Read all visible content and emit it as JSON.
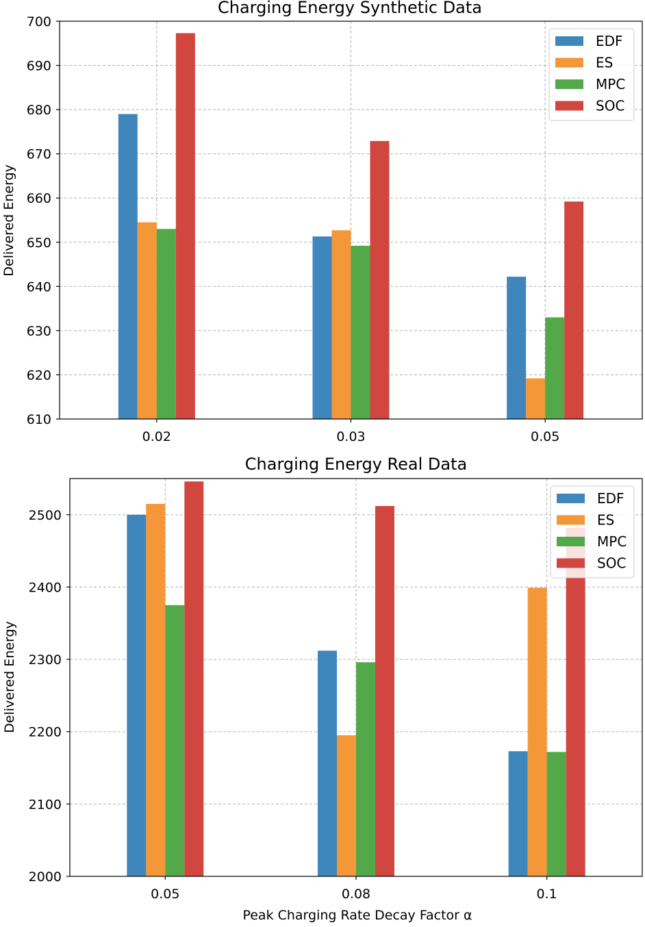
{
  "chart_data": [
    {
      "type": "bar",
      "title": "Charging Energy Synthetic Data",
      "xlabel": "",
      "ylabel": "Delivered Energy",
      "categories": [
        "0.02",
        "0.03",
        "0.05"
      ],
      "ylim": [
        610,
        700
      ],
      "yticks": [
        610,
        620,
        630,
        640,
        650,
        660,
        670,
        680,
        690,
        700
      ],
      "ytick_labels": [
        "610",
        "620",
        "630",
        "640",
        "650",
        "660",
        "670",
        "680",
        "690",
        "700"
      ],
      "grid": true,
      "legend_position": "top-right",
      "series": [
        {
          "name": "EDF",
          "color": "#3f86bc",
          "values": [
            679.0,
            651.3,
            642.2
          ]
        },
        {
          "name": "ES",
          "color": "#f39738",
          "values": [
            654.5,
            652.7,
            619.2
          ]
        },
        {
          "name": "MPC",
          "color": "#53a94a",
          "values": [
            653.0,
            649.2,
            633.0
          ]
        },
        {
          "name": "SOC",
          "color": "#d1463e",
          "values": [
            697.3,
            672.9,
            659.2
          ]
        }
      ]
    },
    {
      "type": "bar",
      "title": "Charging Energy Real Data",
      "xlabel": "Peak Charging Rate Decay Factor α",
      "ylabel": "Delivered Energy",
      "categories": [
        "0.05",
        "0.08",
        "0.1"
      ],
      "ylim": [
        2000,
        2550
      ],
      "yticks": [
        2000,
        2100,
        2200,
        2300,
        2400,
        2500
      ],
      "ytick_labels": [
        "2000",
        "2100",
        "2200",
        "2300",
        "2400",
        "2500"
      ],
      "grid": true,
      "legend_position": "top-right",
      "series": [
        {
          "name": "EDF",
          "color": "#3f86bc",
          "values": [
            2500,
            2312,
            2173
          ]
        },
        {
          "name": "ES",
          "color": "#f39738",
          "values": [
            2515,
            2195,
            2399
          ]
        },
        {
          "name": "MPC",
          "color": "#53a94a",
          "values": [
            2375,
            2296,
            2172
          ]
        },
        {
          "name": "SOC",
          "color": "#d1463e",
          "values": [
            2546,
            2512,
            2482
          ]
        }
      ]
    }
  ]
}
